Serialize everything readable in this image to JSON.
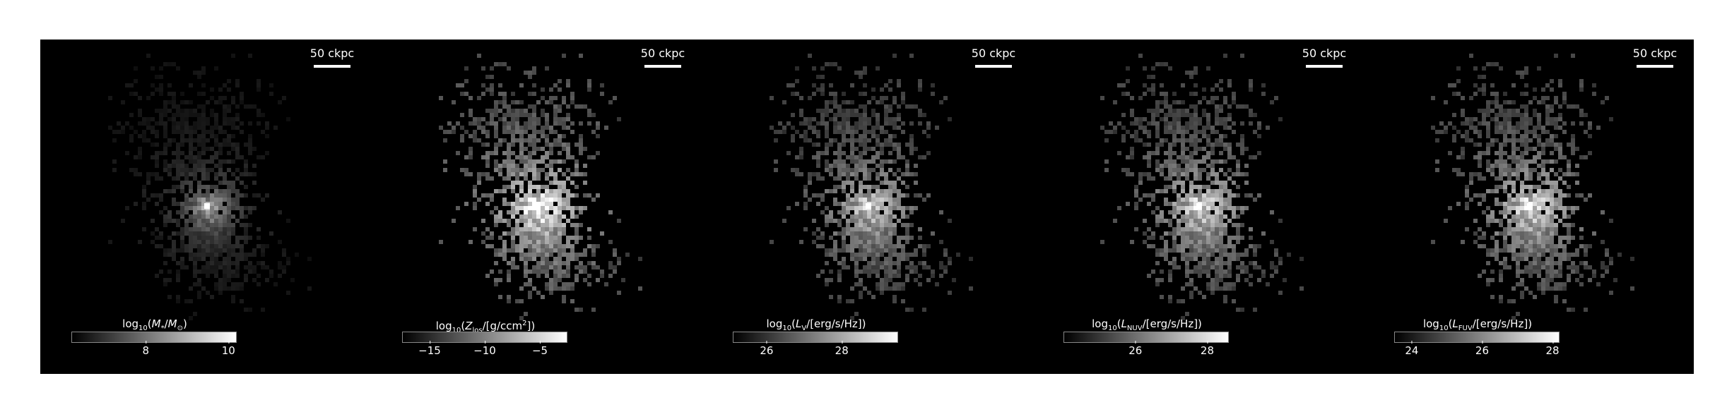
{
  "figure": {
    "panels": [
      {
        "id": "stellar-mass",
        "scalebar": "50 ckpc",
        "colorbar": {
          "label_parts": [
            "log",
            "10",
            "(M",
            "*",
            "/M",
            "⊙",
            ")"
          ],
          "vmin": 6.2,
          "vmax": 10.2,
          "ticks": [
            {
              "value": 8,
              "label": "8"
            },
            {
              "value": 10,
              "label": "10"
            }
          ]
        },
        "intensity": 0.55
      },
      {
        "id": "metal-column",
        "scalebar": "50 ckpc",
        "colorbar": {
          "label_parts": [
            "log",
            "10",
            "(Z",
            "los",
            "/[g/ccm",
            "2",
            "])"
          ],
          "vmin": -17.5,
          "vmax": -2.5,
          "ticks": [
            {
              "value": -15,
              "label": "−15"
            },
            {
              "value": -10,
              "label": "−10"
            },
            {
              "value": -5,
              "label": "−5"
            }
          ]
        },
        "intensity": 1.0
      },
      {
        "id": "lum-v",
        "scalebar": "50 ckpc",
        "colorbar": {
          "label_parts": [
            "log",
            "10",
            "(L",
            "V",
            "/[erg/s/Hz])",
            "",
            ""
          ],
          "vmin": 25.1,
          "vmax": 29.5,
          "ticks": [
            {
              "value": 26,
              "label": "26"
            },
            {
              "value": 28,
              "label": "28"
            }
          ]
        },
        "intensity": 0.65
      },
      {
        "id": "lum-nuv",
        "scalebar": "50 ckpc",
        "colorbar": {
          "label_parts": [
            "log",
            "10",
            "(L",
            "NUV",
            "/[erg/s/Hz])",
            "",
            ""
          ],
          "vmin": 24.0,
          "vmax": 28.6,
          "ticks": [
            {
              "value": 26,
              "label": "26"
            },
            {
              "value": 28,
              "label": "28"
            }
          ]
        },
        "intensity": 0.75
      },
      {
        "id": "lum-fuv",
        "scalebar": "50 ckpc",
        "colorbar": {
          "label_parts": [
            "log",
            "10",
            "(L",
            "FUV",
            "/[erg/s/Hz])",
            "",
            ""
          ],
          "vmin": 23.5,
          "vmax": 28.2,
          "ticks": [
            {
              "value": 24,
              "label": "24"
            },
            {
              "value": 26,
              "label": "26"
            },
            {
              "value": 28,
              "label": "28"
            }
          ]
        },
        "intensity": 0.8
      }
    ]
  }
}
